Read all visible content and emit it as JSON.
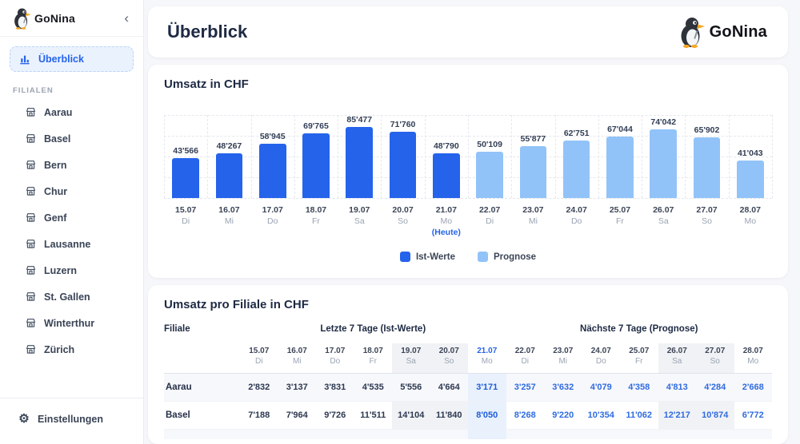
{
  "app": {
    "brand": "GoNina",
    "collapse_glyph": "‹",
    "settings_glyph": "⚙"
  },
  "sidebar": {
    "overview_label": "Überblick",
    "section_label": "FILIALEN",
    "branches": [
      "Aarau",
      "Basel",
      "Bern",
      "Chur",
      "Genf",
      "Lausanne",
      "Luzern",
      "St. Gallen",
      "Winterthur",
      "Zürich"
    ],
    "settings_label": "Einstellungen"
  },
  "header": {
    "title": "Überblick",
    "brand": "GoNina"
  },
  "chart_data": {
    "type": "bar",
    "title": "Umsatz in CHF",
    "x": [
      "15.07",
      "16.07",
      "17.07",
      "18.07",
      "19.07",
      "20.07",
      "21.07",
      "22.07",
      "23.07",
      "24.07",
      "25.07",
      "26.07",
      "27.07",
      "28.07"
    ],
    "weekdays": [
      "Di",
      "Mi",
      "Do",
      "Fr",
      "Sa",
      "So",
      "Mo",
      "Di",
      "Mi",
      "Do",
      "Fr",
      "Sa",
      "So",
      "Mo"
    ],
    "series": [
      {
        "name": "Ist-Werte",
        "color": "#2563eb",
        "values": [
          43566,
          48267,
          58945,
          69765,
          85477,
          71760,
          48790
        ]
      },
      {
        "name": "Prognose",
        "color": "#92c3f8",
        "values": [
          50109,
          55877,
          62751,
          67044,
          74042,
          65902,
          41043
        ]
      }
    ],
    "value_labels": [
      "43'566",
      "48'267",
      "58'945",
      "69'765",
      "85'477",
      "71'760",
      "48'790",
      "50'109",
      "55'877",
      "62'751",
      "67'044",
      "74'042",
      "65'902",
      "41'043"
    ],
    "today_index": 6,
    "today_annotation": "(Heute)",
    "ylim": [
      0,
      90000
    ],
    "grid": "dashed",
    "legend_position": "bottom"
  },
  "table": {
    "title": "Umsatz pro Filiale in CHF",
    "filiale_header": "Filiale",
    "groups": [
      {
        "label": "Letzte 7 Tage (Ist-Werte)",
        "span": 7
      },
      {
        "label": "Nächste 7 Tage (Prognose)",
        "span": 7
      }
    ],
    "prognose_start_index": 6,
    "columns": [
      {
        "date": "15.07",
        "day": "Di",
        "weekend": false,
        "today": false
      },
      {
        "date": "16.07",
        "day": "Mi",
        "weekend": false,
        "today": false
      },
      {
        "date": "17.07",
        "day": "Do",
        "weekend": false,
        "today": false
      },
      {
        "date": "18.07",
        "day": "Fr",
        "weekend": false,
        "today": false
      },
      {
        "date": "19.07",
        "day": "Sa",
        "weekend": true,
        "today": false
      },
      {
        "date": "20.07",
        "day": "So",
        "weekend": true,
        "today": false
      },
      {
        "date": "21.07",
        "day": "Mo",
        "weekend": false,
        "today": true
      },
      {
        "date": "22.07",
        "day": "Di",
        "weekend": false,
        "today": false
      },
      {
        "date": "23.07",
        "day": "Mi",
        "weekend": false,
        "today": false
      },
      {
        "date": "24.07",
        "day": "Do",
        "weekend": false,
        "today": false
      },
      {
        "date": "25.07",
        "day": "Fr",
        "weekend": false,
        "today": false
      },
      {
        "date": "26.07",
        "day": "Sa",
        "weekend": true,
        "today": false
      },
      {
        "date": "27.07",
        "day": "So",
        "weekend": true,
        "today": false
      },
      {
        "date": "28.07",
        "day": "Mo",
        "weekend": false,
        "today": false
      }
    ],
    "rows": [
      {
        "name": "Aarau",
        "values": [
          "2'832",
          "3'137",
          "3'831",
          "4'535",
          "5'556",
          "4'664",
          "3'171",
          "3'257",
          "3'632",
          "4'079",
          "4'358",
          "4'813",
          "4'284",
          "2'668"
        ]
      },
      {
        "name": "Basel",
        "values": [
          "7'188",
          "7'964",
          "9'726",
          "11'511",
          "14'104",
          "11'840",
          "8'050",
          "8'268",
          "9'220",
          "10'354",
          "11'062",
          "12'217",
          "10'874",
          "6'772"
        ]
      }
    ]
  },
  "colors": {
    "ist": "#2563eb",
    "prognose": "#92c3f8",
    "today_bg": "#e9f1fd",
    "weekend_bg": "#f0f2f5",
    "prognose_text": "#2f6be0"
  }
}
